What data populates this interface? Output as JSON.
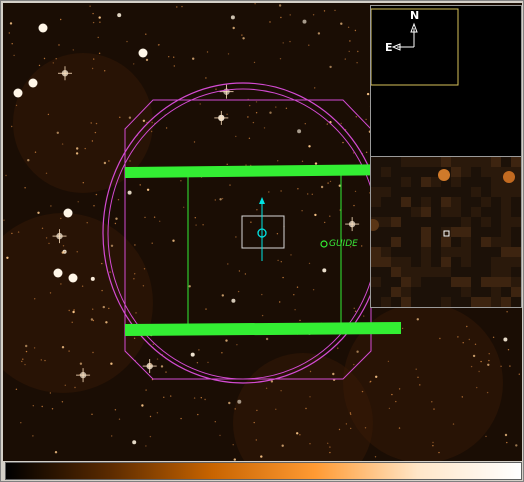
{
  "overlay": {
    "guide_label": "GUIDE"
  },
  "panner": {
    "north_label": "N",
    "east_label": "E",
    "compass_color": "#ffffff",
    "view_box_color": "#d9c25a"
  },
  "colors": {
    "sky_background": "#1a0d04",
    "star_color": "#ffd9a8",
    "aperture_ring_color": "#d34bd3",
    "slit_bar_color": "#33ee33",
    "target_marker_color": "#00e5e5"
  },
  "colorbar": {
    "colormap": "heat",
    "stops": [
      "#000000",
      "#5a2a00",
      "#c86400",
      "#ff9a33",
      "#ffe6c8",
      "#ffffff"
    ]
  }
}
